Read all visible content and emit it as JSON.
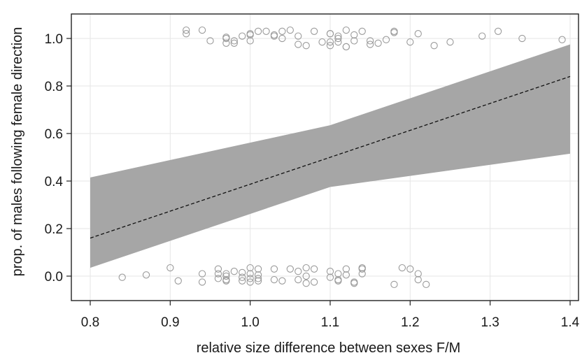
{
  "chart_data": {
    "type": "scatter",
    "title": "",
    "xlabel": "relative size difference between sexes F/M",
    "ylabel": "prop. of males following female direction",
    "xlim": [
      0.8,
      1.4
    ],
    "ylim": [
      -0.1,
      1.1
    ],
    "grid": true,
    "x_ticks": [
      "0.8",
      "0.9",
      "1.0",
      "1.1",
      "1.2",
      "1.3",
      "1.4"
    ],
    "y_ticks": [
      "0.0",
      "0.2",
      "0.4",
      "0.6",
      "0.8",
      "1.0"
    ],
    "fit_line": {
      "style": "dashed",
      "x": [
        0.8,
        1.4
      ],
      "y": [
        0.16,
        0.84
      ]
    },
    "confidence_band": {
      "x": [
        0.8,
        1.1,
        1.4
      ],
      "lower": [
        0.035,
        0.375,
        0.515
      ],
      "upper": [
        0.415,
        0.635,
        0.975
      ],
      "color": "#a6a6a6"
    },
    "points": [
      [
        0.92,
        1.035
      ],
      [
        0.92,
        1.02
      ],
      [
        0.94,
        1.035
      ],
      [
        0.95,
        0.99
      ],
      [
        0.97,
        1.0
      ],
      [
        0.97,
        0.98
      ],
      [
        0.97,
        1.005
      ],
      [
        0.98,
        0.99
      ],
      [
        0.98,
        0.98
      ],
      [
        0.99,
        1.01
      ],
      [
        1.0,
        1.015
      ],
      [
        1.0,
        1.02
      ],
      [
        1.0,
        0.99
      ],
      [
        1.01,
        1.03
      ],
      [
        1.02,
        1.03
      ],
      [
        1.03,
        1.01
      ],
      [
        1.03,
        1.015
      ],
      [
        1.04,
        1.0
      ],
      [
        1.04,
        1.03
      ],
      [
        1.05,
        1.035
      ],
      [
        1.06,
        1.01
      ],
      [
        1.06,
        0.975
      ],
      [
        1.07,
        0.97
      ],
      [
        1.08,
        1.03
      ],
      [
        1.09,
        0.985
      ],
      [
        1.1,
        1.02
      ],
      [
        1.1,
        1.02
      ],
      [
        1.1,
        0.985
      ],
      [
        1.1,
        0.97
      ],
      [
        1.11,
        1.01
      ],
      [
        1.11,
        1.0
      ],
      [
        1.11,
        0.985
      ],
      [
        1.12,
        1.035
      ],
      [
        1.12,
        0.965
      ],
      [
        1.12,
        0.965
      ],
      [
        1.13,
        1.015
      ],
      [
        1.13,
        0.99
      ],
      [
        1.14,
        1.03
      ],
      [
        1.15,
        0.99
      ],
      [
        1.15,
        0.975
      ],
      [
        1.16,
        0.98
      ],
      [
        1.17,
        0.995
      ],
      [
        1.18,
        1.025
      ],
      [
        1.18,
        1.03
      ],
      [
        1.2,
        0.985
      ],
      [
        1.21,
        1.02
      ],
      [
        1.23,
        0.97
      ],
      [
        1.25,
        0.985
      ],
      [
        1.29,
        1.01
      ],
      [
        1.31,
        1.03
      ],
      [
        1.34,
        1.0
      ],
      [
        1.39,
        0.995
      ],
      [
        0.84,
        -0.005
      ],
      [
        0.87,
        0.005
      ],
      [
        0.9,
        0.035
      ],
      [
        0.91,
        -0.02
      ],
      [
        0.94,
        0.01
      ],
      [
        0.94,
        -0.025
      ],
      [
        0.96,
        0.03
      ],
      [
        0.96,
        0.01
      ],
      [
        0.96,
        -0.01
      ],
      [
        0.97,
        0.01
      ],
      [
        0.97,
        0.0
      ],
      [
        0.97,
        -0.015
      ],
      [
        0.97,
        -0.02
      ],
      [
        0.98,
        0.02
      ],
      [
        0.99,
        0.015
      ],
      [
        0.99,
        -0.005
      ],
      [
        0.99,
        -0.02
      ],
      [
        1.0,
        0.035
      ],
      [
        1.0,
        0.01
      ],
      [
        1.0,
        -0.01
      ],
      [
        1.0,
        -0.025
      ],
      [
        1.01,
        0.03
      ],
      [
        1.01,
        0.005
      ],
      [
        1.01,
        -0.01
      ],
      [
        1.01,
        -0.02
      ],
      [
        1.03,
        0.03
      ],
      [
        1.03,
        -0.015
      ],
      [
        1.04,
        -0.02
      ],
      [
        1.05,
        0.03
      ],
      [
        1.06,
        -0.015
      ],
      [
        1.06,
        0.02
      ],
      [
        1.07,
        0.035
      ],
      [
        1.07,
        0.0
      ],
      [
        1.07,
        -0.03
      ],
      [
        1.08,
        0.03
      ],
      [
        1.08,
        -0.025
      ],
      [
        1.1,
        0.02
      ],
      [
        1.1,
        -0.005
      ],
      [
        1.11,
        0.01
      ],
      [
        1.11,
        -0.015
      ],
      [
        1.11,
        -0.02
      ],
      [
        1.12,
        0.03
      ],
      [
        1.12,
        0.005
      ],
      [
        1.13,
        -0.03
      ],
      [
        1.13,
        -0.025
      ],
      [
        1.14,
        0.035
      ],
      [
        1.14,
        0.03
      ],
      [
        1.14,
        0.01
      ],
      [
        1.18,
        -0.035
      ],
      [
        1.19,
        0.035
      ],
      [
        1.2,
        0.03
      ],
      [
        1.21,
        0.01
      ],
      [
        1.21,
        -0.015
      ],
      [
        1.22,
        -0.035
      ]
    ]
  }
}
